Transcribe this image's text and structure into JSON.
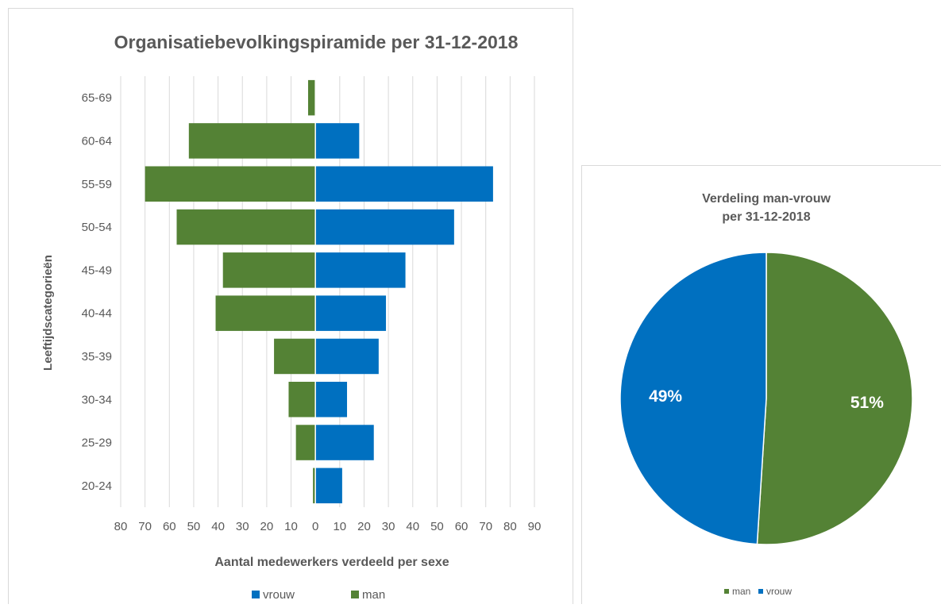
{
  "chart_data": [
    {
      "type": "bar",
      "orientation": "horizontal",
      "title": "Organisatiebevolkingspiramide per 31-12-2018",
      "xlabel": "Aantal medewerkers verdeeld per sexe",
      "ylabel": "Leeftijdscategorieën",
      "categories": [
        "65-69",
        "60-64",
        "55-59",
        "50-54",
        "45-49",
        "40-44",
        "35-39",
        "30-34",
        "25-29",
        "20-24"
      ],
      "series": [
        {
          "name": "vrouw",
          "color": "#0070c0",
          "values": [
            0,
            18,
            73,
            57,
            37,
            29,
            26,
            13,
            24,
            11
          ]
        },
        {
          "name": "man",
          "color": "#548235",
          "values": [
            3,
            52,
            70,
            57,
            38,
            41,
            17,
            11,
            8,
            1
          ]
        }
      ],
      "xlim": [
        -80,
        90
      ],
      "xticks": [
        "80",
        "70",
        "60",
        "50",
        "40",
        "30",
        "20",
        "10",
        "0",
        "10",
        "20",
        "30",
        "40",
        "50",
        "60",
        "70",
        "80",
        "90"
      ],
      "grid": true,
      "legend": "bottom",
      "legend_order": [
        "vrouw",
        "man"
      ]
    },
    {
      "type": "pie",
      "title": "Verdeling man-vrouw",
      "subtitle": "per 31-12-2018",
      "labels": [
        "man",
        "vrouw"
      ],
      "values": [
        51,
        49
      ],
      "data_labels": [
        "51%",
        "49%"
      ],
      "colors": [
        "#548235",
        "#0070c0"
      ],
      "legend": "bottom"
    }
  ]
}
